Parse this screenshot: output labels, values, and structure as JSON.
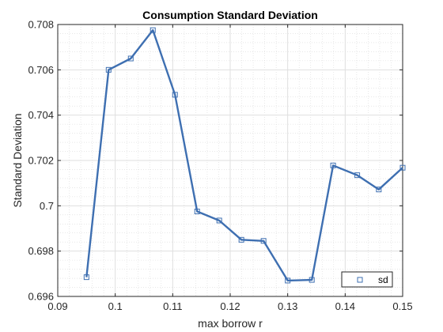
{
  "chart_data": {
    "type": "line",
    "title": "Consumption Standard Deviation",
    "xlabel": "max borrow r",
    "ylabel": "Standard Deviation",
    "xlim": [
      0.09,
      0.15
    ],
    "ylim": [
      0.696,
      0.708
    ],
    "x_ticks": [
      0.09,
      0.1,
      0.11,
      0.12,
      0.13,
      0.14,
      0.15
    ],
    "x_tick_labels": [
      "0.09",
      "0.1",
      "0.11",
      "0.12",
      "0.13",
      "0.14",
      "0.15"
    ],
    "y_ticks": [
      0.696,
      0.698,
      0.7,
      0.702,
      0.704,
      0.706,
      0.708
    ],
    "y_tick_labels": [
      "0.696",
      "0.698",
      "0.7",
      "0.702",
      "0.704",
      "0.706",
      "0.708"
    ],
    "grid": true,
    "minor_grid": true,
    "legend_position": "bottom-right",
    "series": [
      {
        "name": "sd",
        "color": "#3e6fb1",
        "marker": "square",
        "x": [
          0.095,
          0.09885,
          0.1027,
          0.10655,
          0.1104,
          0.11425,
          0.1181,
          0.12195,
          0.1258,
          0.13,
          0.1342,
          0.1379,
          0.1421,
          0.14585,
          0.15
        ],
        "y": [
          0.69685,
          0.706,
          0.7065,
          0.70775,
          0.7049,
          0.69975,
          0.69935,
          0.6985,
          0.69845,
          0.6967,
          0.69673,
          0.70178,
          0.70135,
          0.70072,
          0.70168
        ]
      }
    ]
  }
}
